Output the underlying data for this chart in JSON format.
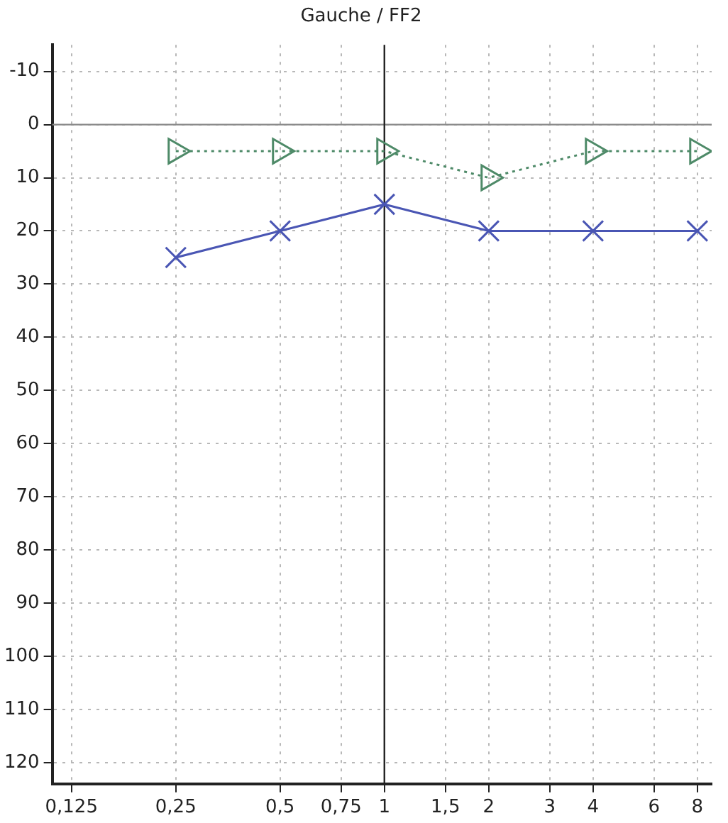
{
  "chart_data": {
    "type": "line",
    "title": "Gauche / FF2",
    "x": [
      0.25,
      0.5,
      1,
      2,
      4,
      8
    ],
    "series": [
      {
        "color": "#4a56b4",
        "values": [
          25,
          20,
          15,
          20,
          20,
          20
        ],
        "marker": "cross",
        "line_style": "solid"
      },
      {
        "color": "#4e8a68",
        "values": [
          5,
          5,
          5,
          10,
          5,
          5
        ],
        "marker": "triangle",
        "line_style": "dotted"
      }
    ],
    "log": "x",
    "xlim": [
      0.11,
      8.8
    ],
    "ylim": [
      124,
      -15
    ],
    "xticks": [
      {
        "value": 0.125,
        "label": "0,125"
      },
      {
        "value": 0.25,
        "label": "0,25"
      },
      {
        "value": 0.5,
        "label": "0,5"
      },
      {
        "value": 0.75,
        "label": "0,75"
      },
      1,
      {
        "value": 1.5,
        "label": "1,5"
      },
      2,
      3,
      4,
      6,
      8
    ],
    "yticks": [
      -10,
      0,
      10,
      20,
      30,
      40,
      50,
      60,
      70,
      80,
      90,
      100,
      110,
      120
    ],
    "grid": true,
    "ref_lines": [
      {
        "axis": "y",
        "value": 0,
        "color": "#8a8a8a"
      },
      {
        "axis": "x",
        "value": 1,
        "color": "#222222"
      }
    ]
  }
}
